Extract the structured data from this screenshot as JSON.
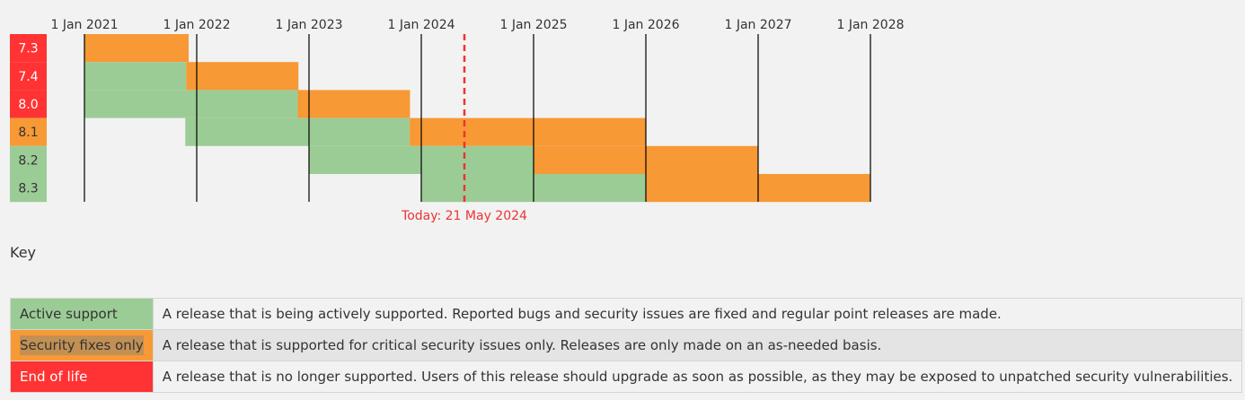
{
  "timeline": {
    "years": [
      "1 Jan 2021",
      "1 Jan 2022",
      "1 Jan 2023",
      "1 Jan 2024",
      "1 Jan 2025",
      "1 Jan 2026",
      "1 Jan 2027",
      "1 Jan 2028"
    ],
    "today_label": "Today: 21 May 2024",
    "colors": {
      "active": "#9ccc96",
      "security": "#f79935",
      "eol": "#ff3333",
      "today": "#ee3333"
    },
    "versions": [
      {
        "label": "7.3",
        "status": "eol",
        "active_end": "2021-01-01",
        "security_end": "2021-12-06"
      },
      {
        "label": "7.4",
        "status": "eol",
        "active_end": "2021-11-28",
        "security_end": "2022-11-28"
      },
      {
        "label": "8.0",
        "status": "eol",
        "active_end": "2022-11-26",
        "security_end": "2023-11-26"
      },
      {
        "label": "8.1",
        "status": "security",
        "active_end": "2023-11-25",
        "security_end": "2025-12-31"
      },
      {
        "label": "8.2",
        "status": "active",
        "active_end": "2024-12-31",
        "security_end": "2026-12-31"
      },
      {
        "label": "8.3",
        "status": "active",
        "active_end": "2025-12-31",
        "security_end": "2027-12-31"
      }
    ]
  },
  "key": {
    "title": "Key",
    "rows": [
      {
        "label": "Active support",
        "description": "A release that is being actively supported. Reported bugs and security issues are fixed and regular point releases are made."
      },
      {
        "label": "Security fixes only",
        "description": "A release that is supported for critical security issues only. Releases are only made on an as-needed basis."
      },
      {
        "label": "End of life",
        "description": "A release that is no longer supported. Users of this release should upgrade as soon as possible, as they may be exposed to unpatched security vulnerabilities."
      }
    ]
  }
}
